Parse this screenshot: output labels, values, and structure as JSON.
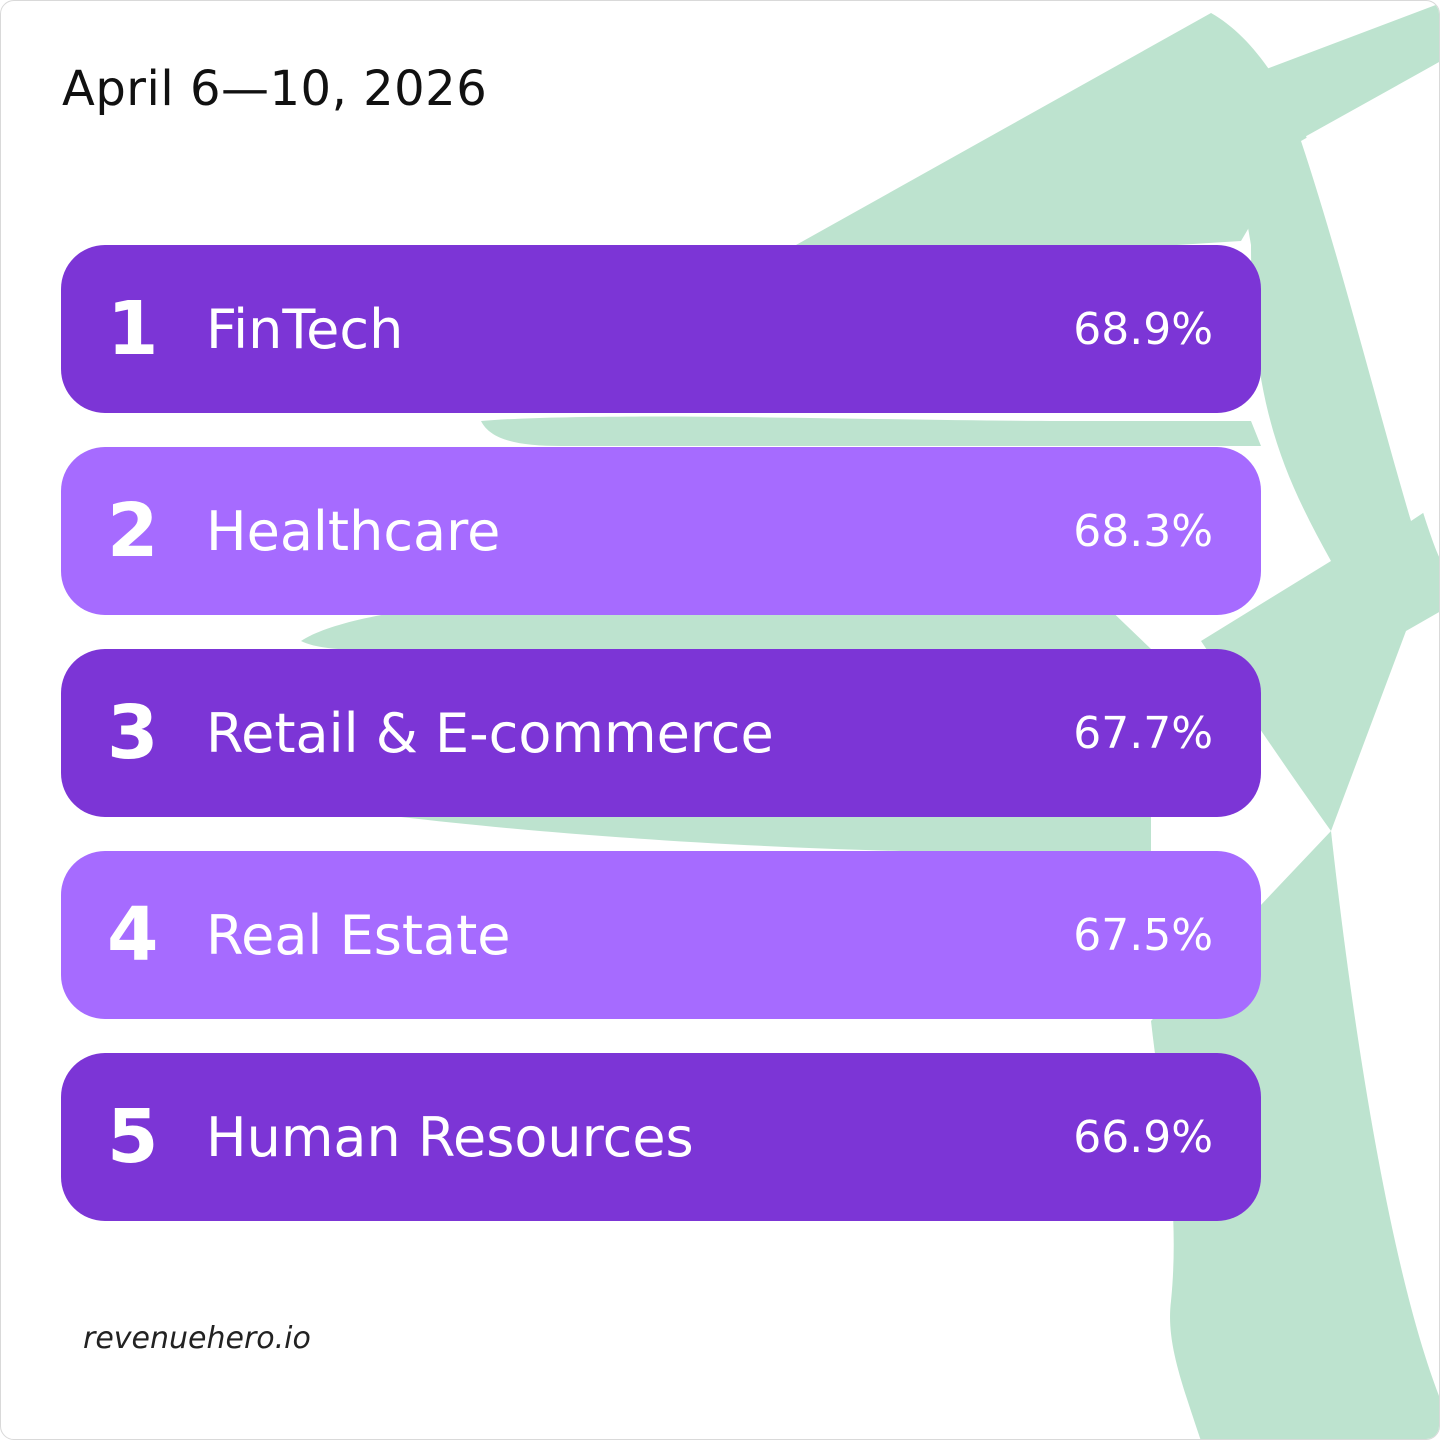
{
  "header": {
    "date_range": "April 6—10, 2026"
  },
  "ranking": [
    {
      "rank": "1",
      "name": "FinTech",
      "value": "68.9%",
      "style": "dark"
    },
    {
      "rank": "2",
      "name": "Healthcare",
      "value": "68.3%",
      "style": "light"
    },
    {
      "rank": "3",
      "name": "Retail & E-commerce",
      "value": "67.7%",
      "style": "dark"
    },
    {
      "rank": "4",
      "name": "Real Estate",
      "value": "67.5%",
      "style": "light"
    },
    {
      "rank": "5",
      "name": "Human Resources",
      "value": "66.9%",
      "style": "dark"
    }
  ],
  "footer": {
    "site": "revenuehero.io"
  },
  "colors": {
    "row_dark": "#7c35d6",
    "row_light": "#a66bff",
    "background_shape": "#bde3cf",
    "text": "#ffffff"
  }
}
